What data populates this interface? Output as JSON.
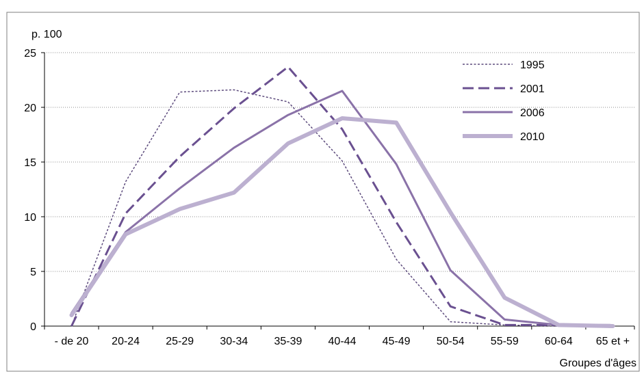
{
  "chart_data": {
    "type": "line",
    "title": "",
    "ylabel": "p. 100",
    "xlabel": "Groupes d'âges",
    "ylim": [
      0,
      25
    ],
    "yticks": [
      0,
      5,
      10,
      15,
      20,
      25
    ],
    "grid": "horizontal-dotted",
    "legend_position": "top-right",
    "categories": [
      "- de 20",
      "20-24",
      "25-29",
      "30-34",
      "35-39",
      "40-44",
      "45-49",
      "50-54",
      "55-59",
      "60-64",
      "65 et +"
    ],
    "series": [
      {
        "name": "1995",
        "style": "dotted",
        "color": "#5c4a7c",
        "values": [
          0.0,
          13.2,
          21.4,
          21.6,
          20.5,
          15.1,
          6.1,
          0.4,
          0.1,
          0.0,
          0.0
        ]
      },
      {
        "name": "2001",
        "style": "dashed",
        "color": "#6a5090",
        "values": [
          0.0,
          10.3,
          15.5,
          19.9,
          23.7,
          18.0,
          9.5,
          1.8,
          0.1,
          0.1,
          0.1
        ]
      },
      {
        "name": "2006",
        "style": "solid",
        "color": "#8a72a8",
        "values": [
          1.2,
          8.6,
          12.6,
          16.3,
          19.3,
          21.5,
          14.8,
          5.1,
          0.6,
          0.1,
          0.0
        ]
      },
      {
        "name": "2010",
        "style": "thick",
        "color": "#bcb0d0",
        "values": [
          1.0,
          8.4,
          10.7,
          12.2,
          16.7,
          19.0,
          18.6,
          10.4,
          2.6,
          0.1,
          0.0
        ]
      }
    ]
  }
}
